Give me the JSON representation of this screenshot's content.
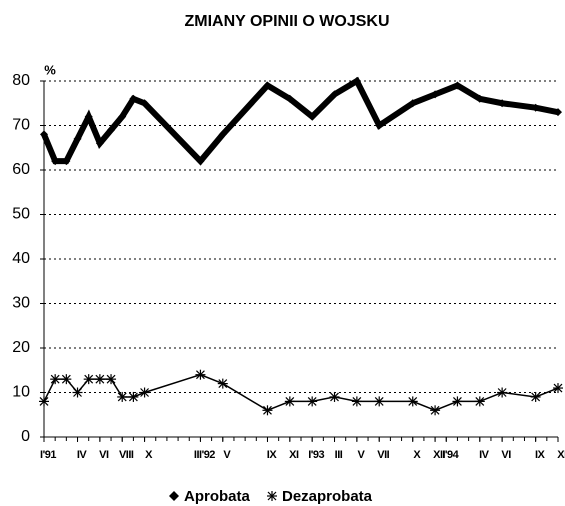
{
  "chart_data": {
    "type": "line",
    "title": "ZMIANY OPINII O WOJSKU",
    "y_label": "%",
    "x": [
      0,
      1,
      2,
      3,
      4,
      5,
      6,
      7,
      8,
      9,
      14,
      16,
      20,
      22,
      24,
      26,
      28,
      30,
      33,
      35,
      37,
      39,
      41,
      44,
      46
    ],
    "xlim": [
      0,
      46
    ],
    "xticks": [
      {
        "value": 0,
        "label": "I'91"
      },
      {
        "value": 3,
        "label": "IV"
      },
      {
        "value": 5,
        "label": "VI"
      },
      {
        "value": 7,
        "label": "VIII"
      },
      {
        "value": 9,
        "label": "X"
      },
      {
        "value": 14,
        "label": "III'92"
      },
      {
        "value": 16,
        "label": "V"
      },
      {
        "value": 20,
        "label": "IX"
      },
      {
        "value": 22,
        "label": "XI"
      },
      {
        "value": 24,
        "label": "I'93"
      },
      {
        "value": 26,
        "label": "III"
      },
      {
        "value": 28,
        "label": "V"
      },
      {
        "value": 30,
        "label": "VII"
      },
      {
        "value": 33,
        "label": "X"
      },
      {
        "value": 35,
        "label": "XII"
      },
      {
        "value": 36,
        "label": "I'94"
      },
      {
        "value": 39,
        "label": "IV"
      },
      {
        "value": 41,
        "label": "VI"
      },
      {
        "value": 44,
        "label": "IX"
      },
      {
        "value": 46,
        "label": "XI"
      }
    ],
    "ylim": [
      0,
      80
    ],
    "yticks": [
      0,
      10,
      20,
      30,
      40,
      50,
      60,
      70,
      80
    ],
    "grid": true,
    "series": [
      {
        "name": "Aprobata",
        "color": "#000000",
        "marker": "diamond",
        "values": [
          68,
          62,
          62,
          67,
          72,
          66,
          69,
          72,
          76,
          75,
          62,
          68,
          79,
          76,
          72,
          77,
          80,
          70,
          75,
          77,
          79,
          76,
          75,
          74,
          73
        ]
      },
      {
        "name": "Dezaprobata",
        "color": "#000000",
        "marker": "asterisk",
        "values": [
          8,
          13,
          13,
          10,
          13,
          13,
          13,
          9,
          9,
          10,
          14,
          12,
          6,
          8,
          8,
          9,
          8,
          8,
          8,
          6,
          8,
          8,
          10,
          9,
          11
        ]
      }
    ]
  }
}
